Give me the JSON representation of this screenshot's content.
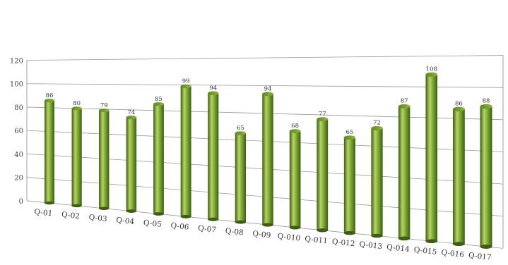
{
  "chart_data": {
    "type": "bar",
    "title": "",
    "xlabel": "",
    "ylabel": "",
    "categories": [
      "Q-01",
      "Q-02",
      "Q-03",
      "Q-04",
      "Q-05",
      "Q-06",
      "Q-07",
      "Q-08",
      "Q-09",
      "Q-010",
      "Q-011",
      "Q-012",
      "Q-013",
      "Q-014",
      "Q-015",
      "Q-016",
      "Q-017"
    ],
    "values": [
      86,
      80,
      79,
      74,
      85,
      99,
      94,
      65,
      94,
      68,
      77,
      65,
      72,
      87,
      108,
      86,
      88
    ],
    "data_labels": [
      "86",
      "80",
      "79",
      "74",
      "85",
      "99",
      "94",
      "65",
      "94",
      "68",
      "77",
      "65",
      "72",
      "87",
      "108",
      "86",
      "88"
    ],
    "y_ticks": [
      "0",
      "20",
      "40",
      "60",
      "80",
      "100",
      "120"
    ],
    "ylim": [
      0,
      120
    ],
    "grid": true,
    "legend": "none",
    "style": "3d-cylinder",
    "bar_color": "#6e9a2a",
    "bar_highlight": "#b6d466",
    "bar_shadow": "#3e5c12"
  }
}
